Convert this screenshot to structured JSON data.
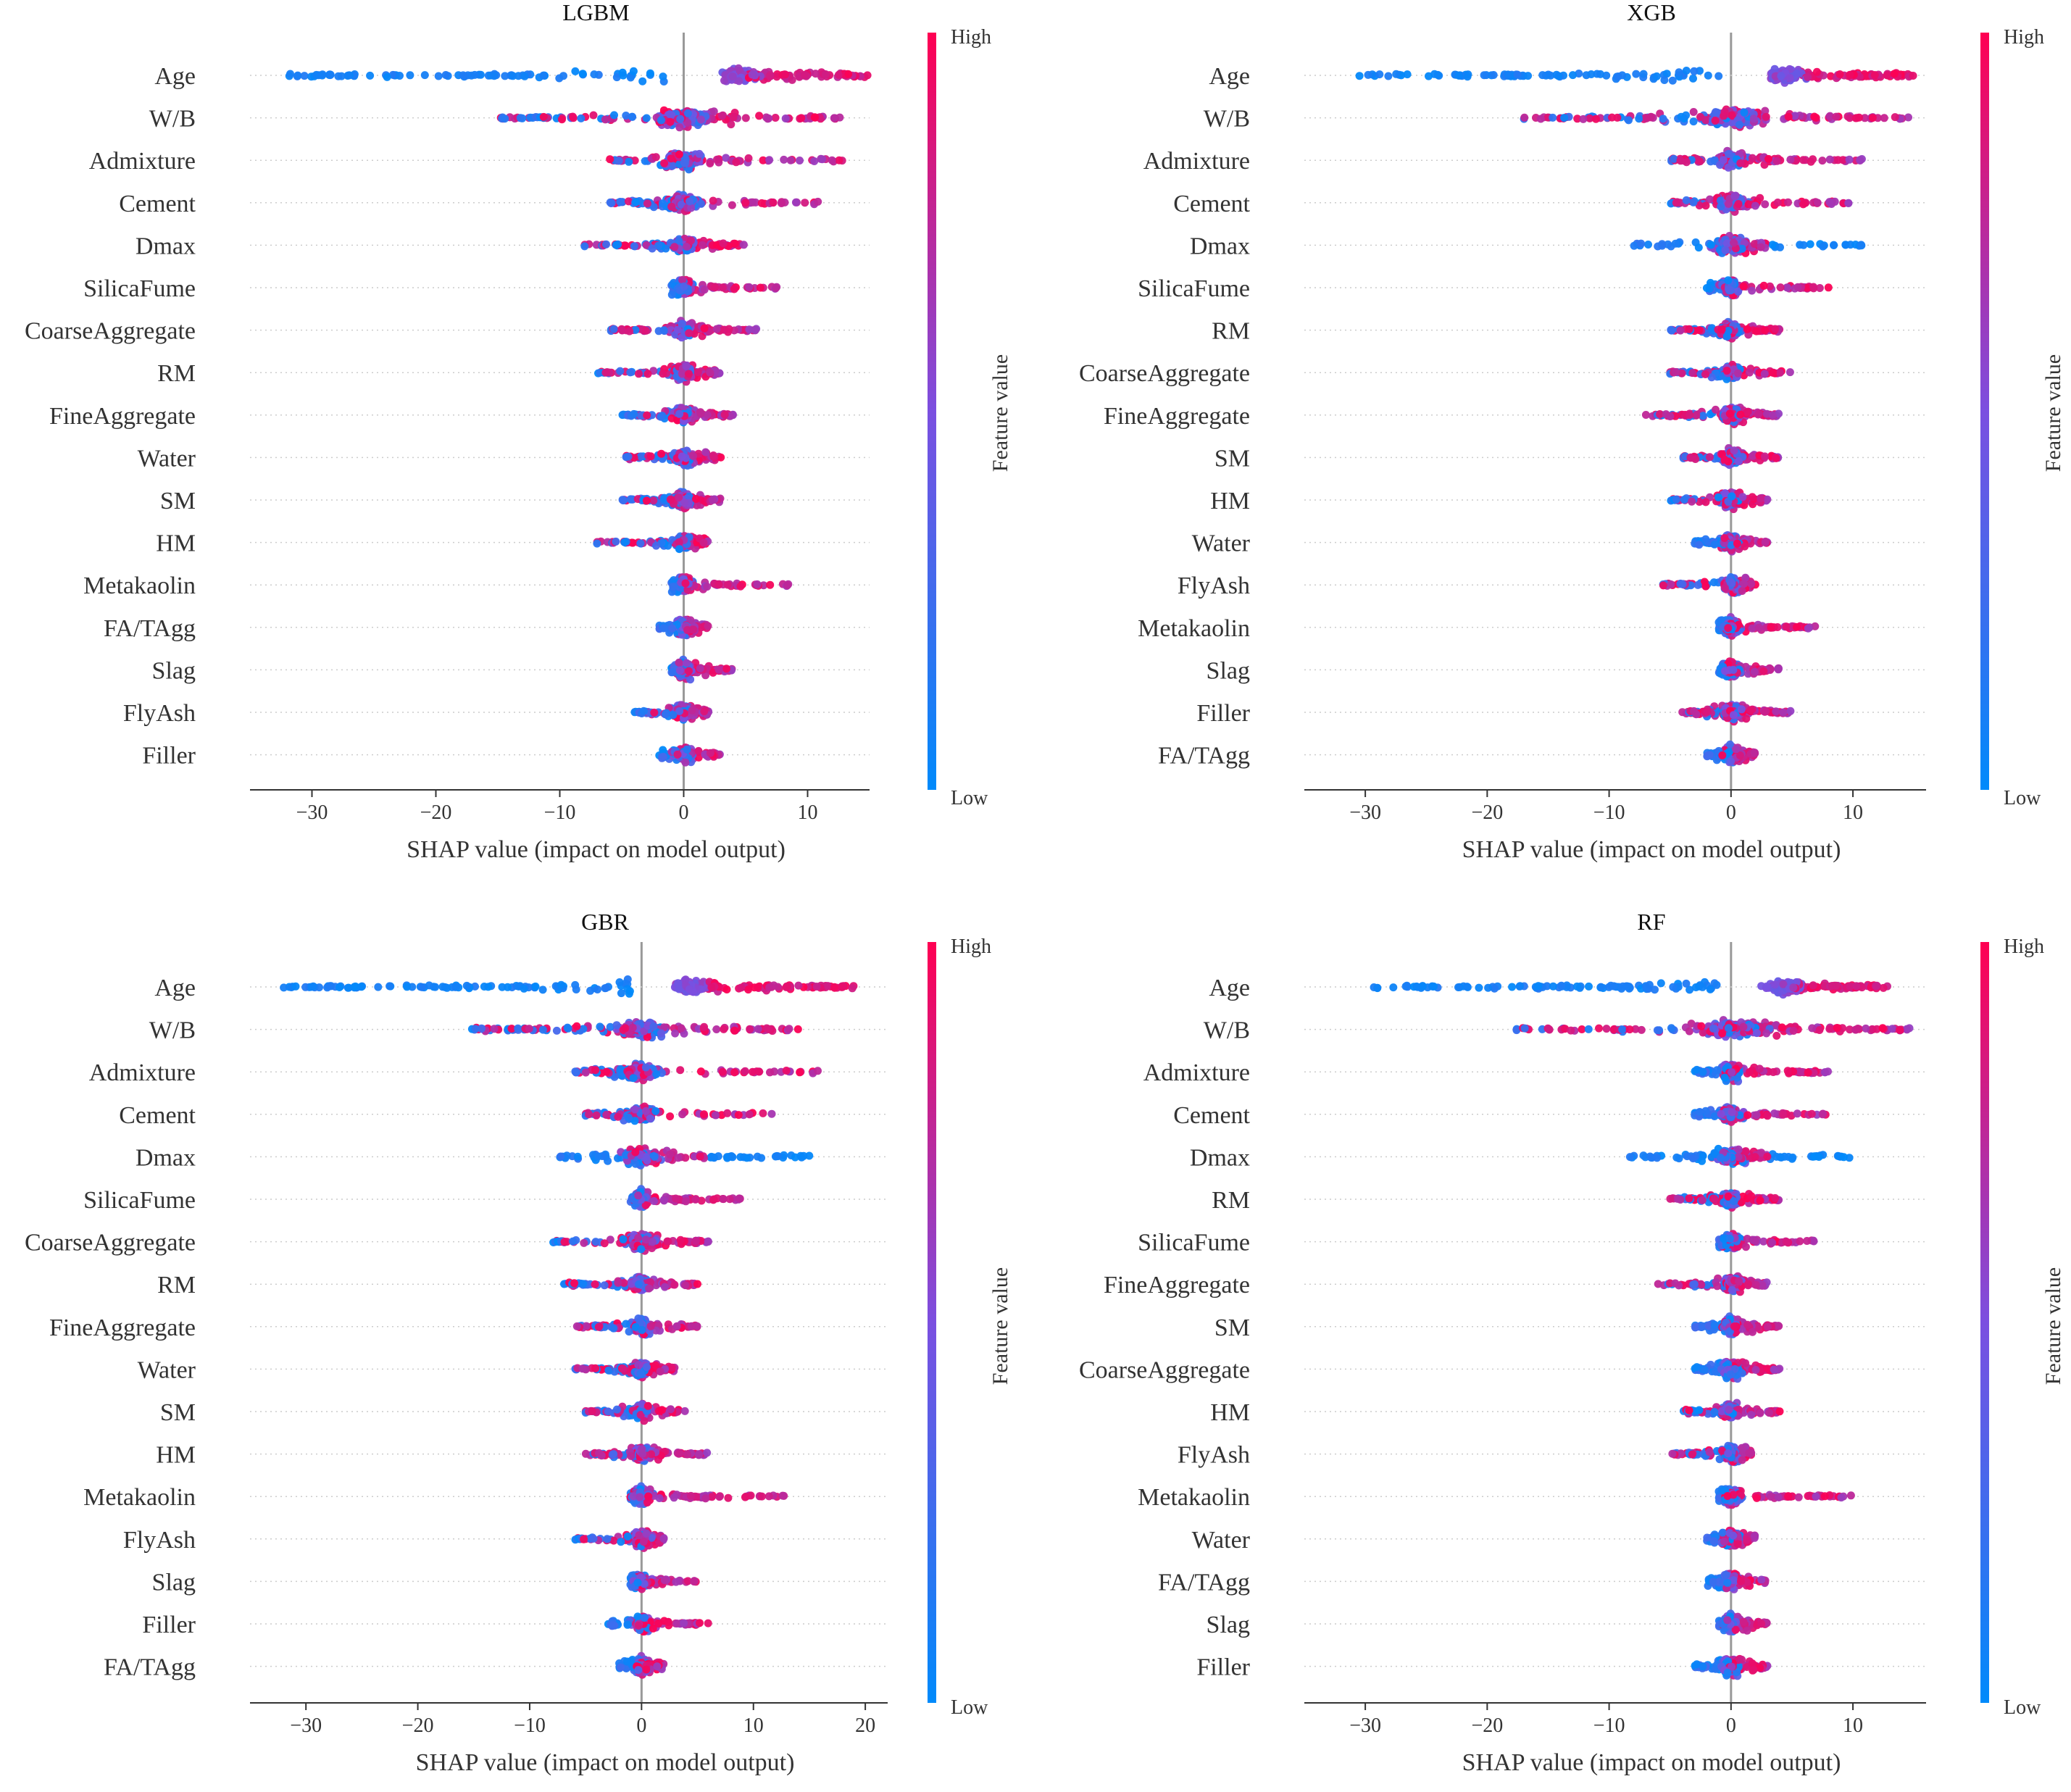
{
  "colors": {
    "low": "#008afb",
    "mid": "#7b4fe0",
    "high": "#ff0052",
    "axis": "#333333",
    "zero_line": "#999999",
    "grid": "#cccccc"
  },
  "chart_data": [
    {
      "type": "scatter",
      "subtype": "shap-beeswarm",
      "title": "LGBM",
      "xlabel": "SHAP value (impact on model output)",
      "xlim": [
        -35,
        15
      ],
      "xticks": [
        -30,
        -20,
        -10,
        0,
        10
      ],
      "colorbar": {
        "title": "Feature value",
        "high_label": "High",
        "low_label": "Low"
      },
      "features": [
        {
          "name": "Age",
          "low_min": -32,
          "low_max": -1,
          "high_max": 15
        },
        {
          "name": "W/B",
          "low_min": -15,
          "low_max": 13,
          "high_max": 13
        },
        {
          "name": "Admixture",
          "low_min": -6,
          "low_max": 13,
          "high_max": 13
        },
        {
          "name": "Cement",
          "low_min": -6,
          "low_max": 11,
          "high_max": 11
        },
        {
          "name": "Dmax",
          "low_min": -8,
          "low_max": 5,
          "high_max": 5
        },
        {
          "name": "SilicaFume",
          "low_min": -1,
          "low_max": 8,
          "high_max": 8
        },
        {
          "name": "CoarseAggregate",
          "low_min": -6,
          "low_max": 6,
          "high_max": 6
        },
        {
          "name": "RM",
          "low_min": -7,
          "low_max": 3,
          "high_max": 3
        },
        {
          "name": "FineAggregate",
          "low_min": -5,
          "low_max": 4,
          "high_max": 4
        },
        {
          "name": "Water",
          "low_min": -5,
          "low_max": 3,
          "high_max": 3
        },
        {
          "name": "SM",
          "low_min": -5,
          "low_max": 3,
          "high_max": 3
        },
        {
          "name": "HM",
          "low_min": -7,
          "low_max": 2,
          "high_max": 2
        },
        {
          "name": "Metakaolin",
          "low_min": -1,
          "low_max": 9,
          "high_max": 9
        },
        {
          "name": "FA/TAgg",
          "low_min": -2,
          "low_max": 2,
          "high_max": 2
        },
        {
          "name": "Slag",
          "low_min": -1,
          "low_max": 4,
          "high_max": 4
        },
        {
          "name": "FlyAsh",
          "low_min": -4,
          "low_max": 2,
          "high_max": 2
        },
        {
          "name": "Filler",
          "low_min": -2,
          "low_max": 3,
          "high_max": 3
        }
      ]
    },
    {
      "type": "scatter",
      "subtype": "shap-beeswarm",
      "title": "XGB",
      "xlabel": "SHAP value (impact on model output)",
      "xlim": [
        -35,
        16
      ],
      "xticks": [
        -30,
        -20,
        -10,
        0,
        10
      ],
      "colorbar": {
        "title": "Feature value",
        "high_label": "High",
        "low_label": "Low"
      },
      "features": [
        {
          "name": "Age",
          "low_min": -31,
          "low_max": -1,
          "high_max": 15
        },
        {
          "name": "W/B",
          "low_min": -17,
          "low_max": 15,
          "high_max": 15
        },
        {
          "name": "Admixture",
          "low_min": -5,
          "low_max": 11,
          "high_max": 11
        },
        {
          "name": "Cement",
          "low_min": -5,
          "low_max": 10,
          "high_max": 10
        },
        {
          "name": "Dmax",
          "low_min": -8,
          "low_max": 11,
          "high_max": 3
        },
        {
          "name": "SilicaFume",
          "low_min": -2,
          "low_max": 8,
          "high_max": 8
        },
        {
          "name": "RM",
          "low_min": -5,
          "low_max": 4,
          "high_max": 4
        },
        {
          "name": "CoarseAggregate",
          "low_min": -5,
          "low_max": 5,
          "high_max": 5
        },
        {
          "name": "FineAggregate",
          "low_min": -7,
          "low_max": 4,
          "high_max": 4
        },
        {
          "name": "SM",
          "low_min": -4,
          "low_max": 4,
          "high_max": 4
        },
        {
          "name": "HM",
          "low_min": -5,
          "low_max": 3,
          "high_max": 3
        },
        {
          "name": "Water",
          "low_min": -3,
          "low_max": 3,
          "high_max": 3
        },
        {
          "name": "FlyAsh",
          "low_min": -6,
          "low_max": 2,
          "high_max": 2
        },
        {
          "name": "Metakaolin",
          "low_min": -1,
          "low_max": 7,
          "high_max": 7
        },
        {
          "name": "Slag",
          "low_min": -1,
          "low_max": 4,
          "high_max": 4
        },
        {
          "name": "Filler",
          "low_min": -4,
          "low_max": 5,
          "high_max": 5
        },
        {
          "name": "FA/TAgg",
          "low_min": -2,
          "low_max": 2,
          "high_max": 2
        }
      ]
    },
    {
      "type": "scatter",
      "subtype": "shap-beeswarm",
      "title": "GBR",
      "xlabel": "SHAP value (impact on model output)",
      "xlim": [
        -35,
        22
      ],
      "xticks": [
        -30,
        -20,
        -10,
        0,
        10,
        20
      ],
      "colorbar": {
        "title": "Feature value",
        "high_label": "High",
        "low_label": "Low"
      },
      "features": [
        {
          "name": "Age",
          "low_min": -32,
          "low_max": -1,
          "high_max": 19
        },
        {
          "name": "W/B",
          "low_min": -16,
          "low_max": 14,
          "high_max": 14
        },
        {
          "name": "Admixture",
          "low_min": -6,
          "low_max": 16,
          "high_max": 16
        },
        {
          "name": "Cement",
          "low_min": -5,
          "low_max": 12,
          "high_max": 12
        },
        {
          "name": "Dmax",
          "low_min": -8,
          "low_max": 15,
          "high_max": 6
        },
        {
          "name": "SilicaFume",
          "low_min": -1,
          "low_max": 9,
          "high_max": 9
        },
        {
          "name": "CoarseAggregate",
          "low_min": -8,
          "low_max": 6,
          "high_max": 6
        },
        {
          "name": "RM",
          "low_min": -7,
          "low_max": 5,
          "high_max": 5
        },
        {
          "name": "FineAggregate",
          "low_min": -6,
          "low_max": 6,
          "high_max": 6
        },
        {
          "name": "Water",
          "low_min": -6,
          "low_max": 3,
          "high_max": 3
        },
        {
          "name": "SM",
          "low_min": -5,
          "low_max": 4,
          "high_max": 4
        },
        {
          "name": "HM",
          "low_min": -5,
          "low_max": 6,
          "high_max": 6
        },
        {
          "name": "Metakaolin",
          "low_min": -1,
          "low_max": 13,
          "high_max": 13
        },
        {
          "name": "FlyAsh",
          "low_min": -6,
          "low_max": 2,
          "high_max": 2
        },
        {
          "name": "Slag",
          "low_min": -1,
          "low_max": 5,
          "high_max": 5
        },
        {
          "name": "Filler",
          "low_min": -3,
          "low_max": 6,
          "high_max": 6
        },
        {
          "name": "FA/TAgg",
          "low_min": -2,
          "low_max": 2,
          "high_max": 2
        }
      ]
    },
    {
      "type": "scatter",
      "subtype": "shap-beeswarm",
      "title": "RF",
      "xlabel": "SHAP value (impact on model output)",
      "xlim": [
        -35,
        16
      ],
      "xticks": [
        -30,
        -20,
        -10,
        0,
        10
      ],
      "colorbar": {
        "title": "Feature value",
        "high_label": "High",
        "low_label": "Low"
      },
      "features": [
        {
          "name": "Age",
          "low_min": -30,
          "low_max": -1,
          "high_max": 13
        },
        {
          "name": "W/B",
          "low_min": -18,
          "low_max": 15,
          "high_max": 15
        },
        {
          "name": "Admixture",
          "low_min": -3,
          "low_max": 8,
          "high_max": 8
        },
        {
          "name": "Cement",
          "low_min": -3,
          "low_max": 8,
          "high_max": 8
        },
        {
          "name": "Dmax",
          "low_min": -9,
          "low_max": 10,
          "high_max": 3
        },
        {
          "name": "RM",
          "low_min": -5,
          "low_max": 4,
          "high_max": 4
        },
        {
          "name": "SilicaFume",
          "low_min": -1,
          "low_max": 7,
          "high_max": 7
        },
        {
          "name": "FineAggregate",
          "low_min": -6,
          "low_max": 3,
          "high_max": 3
        },
        {
          "name": "SM",
          "low_min": -3,
          "low_max": 4,
          "high_max": 4
        },
        {
          "name": "CoarseAggregate",
          "low_min": -3,
          "low_max": 4,
          "high_max": 4
        },
        {
          "name": "HM",
          "low_min": -4,
          "low_max": 4,
          "high_max": 4
        },
        {
          "name": "FlyAsh",
          "low_min": -5,
          "low_max": 2,
          "high_max": 2
        },
        {
          "name": "Metakaolin",
          "low_min": -1,
          "low_max": 10,
          "high_max": 10
        },
        {
          "name": "Water",
          "low_min": -2,
          "low_max": 2,
          "high_max": 2
        },
        {
          "name": "FA/TAgg",
          "low_min": -2,
          "low_max": 3,
          "high_max": 3
        },
        {
          "name": "Slag",
          "low_min": -1,
          "low_max": 3,
          "high_max": 3
        },
        {
          "name": "Filler",
          "low_min": -3,
          "low_max": 3,
          "high_max": 3
        }
      ]
    }
  ]
}
